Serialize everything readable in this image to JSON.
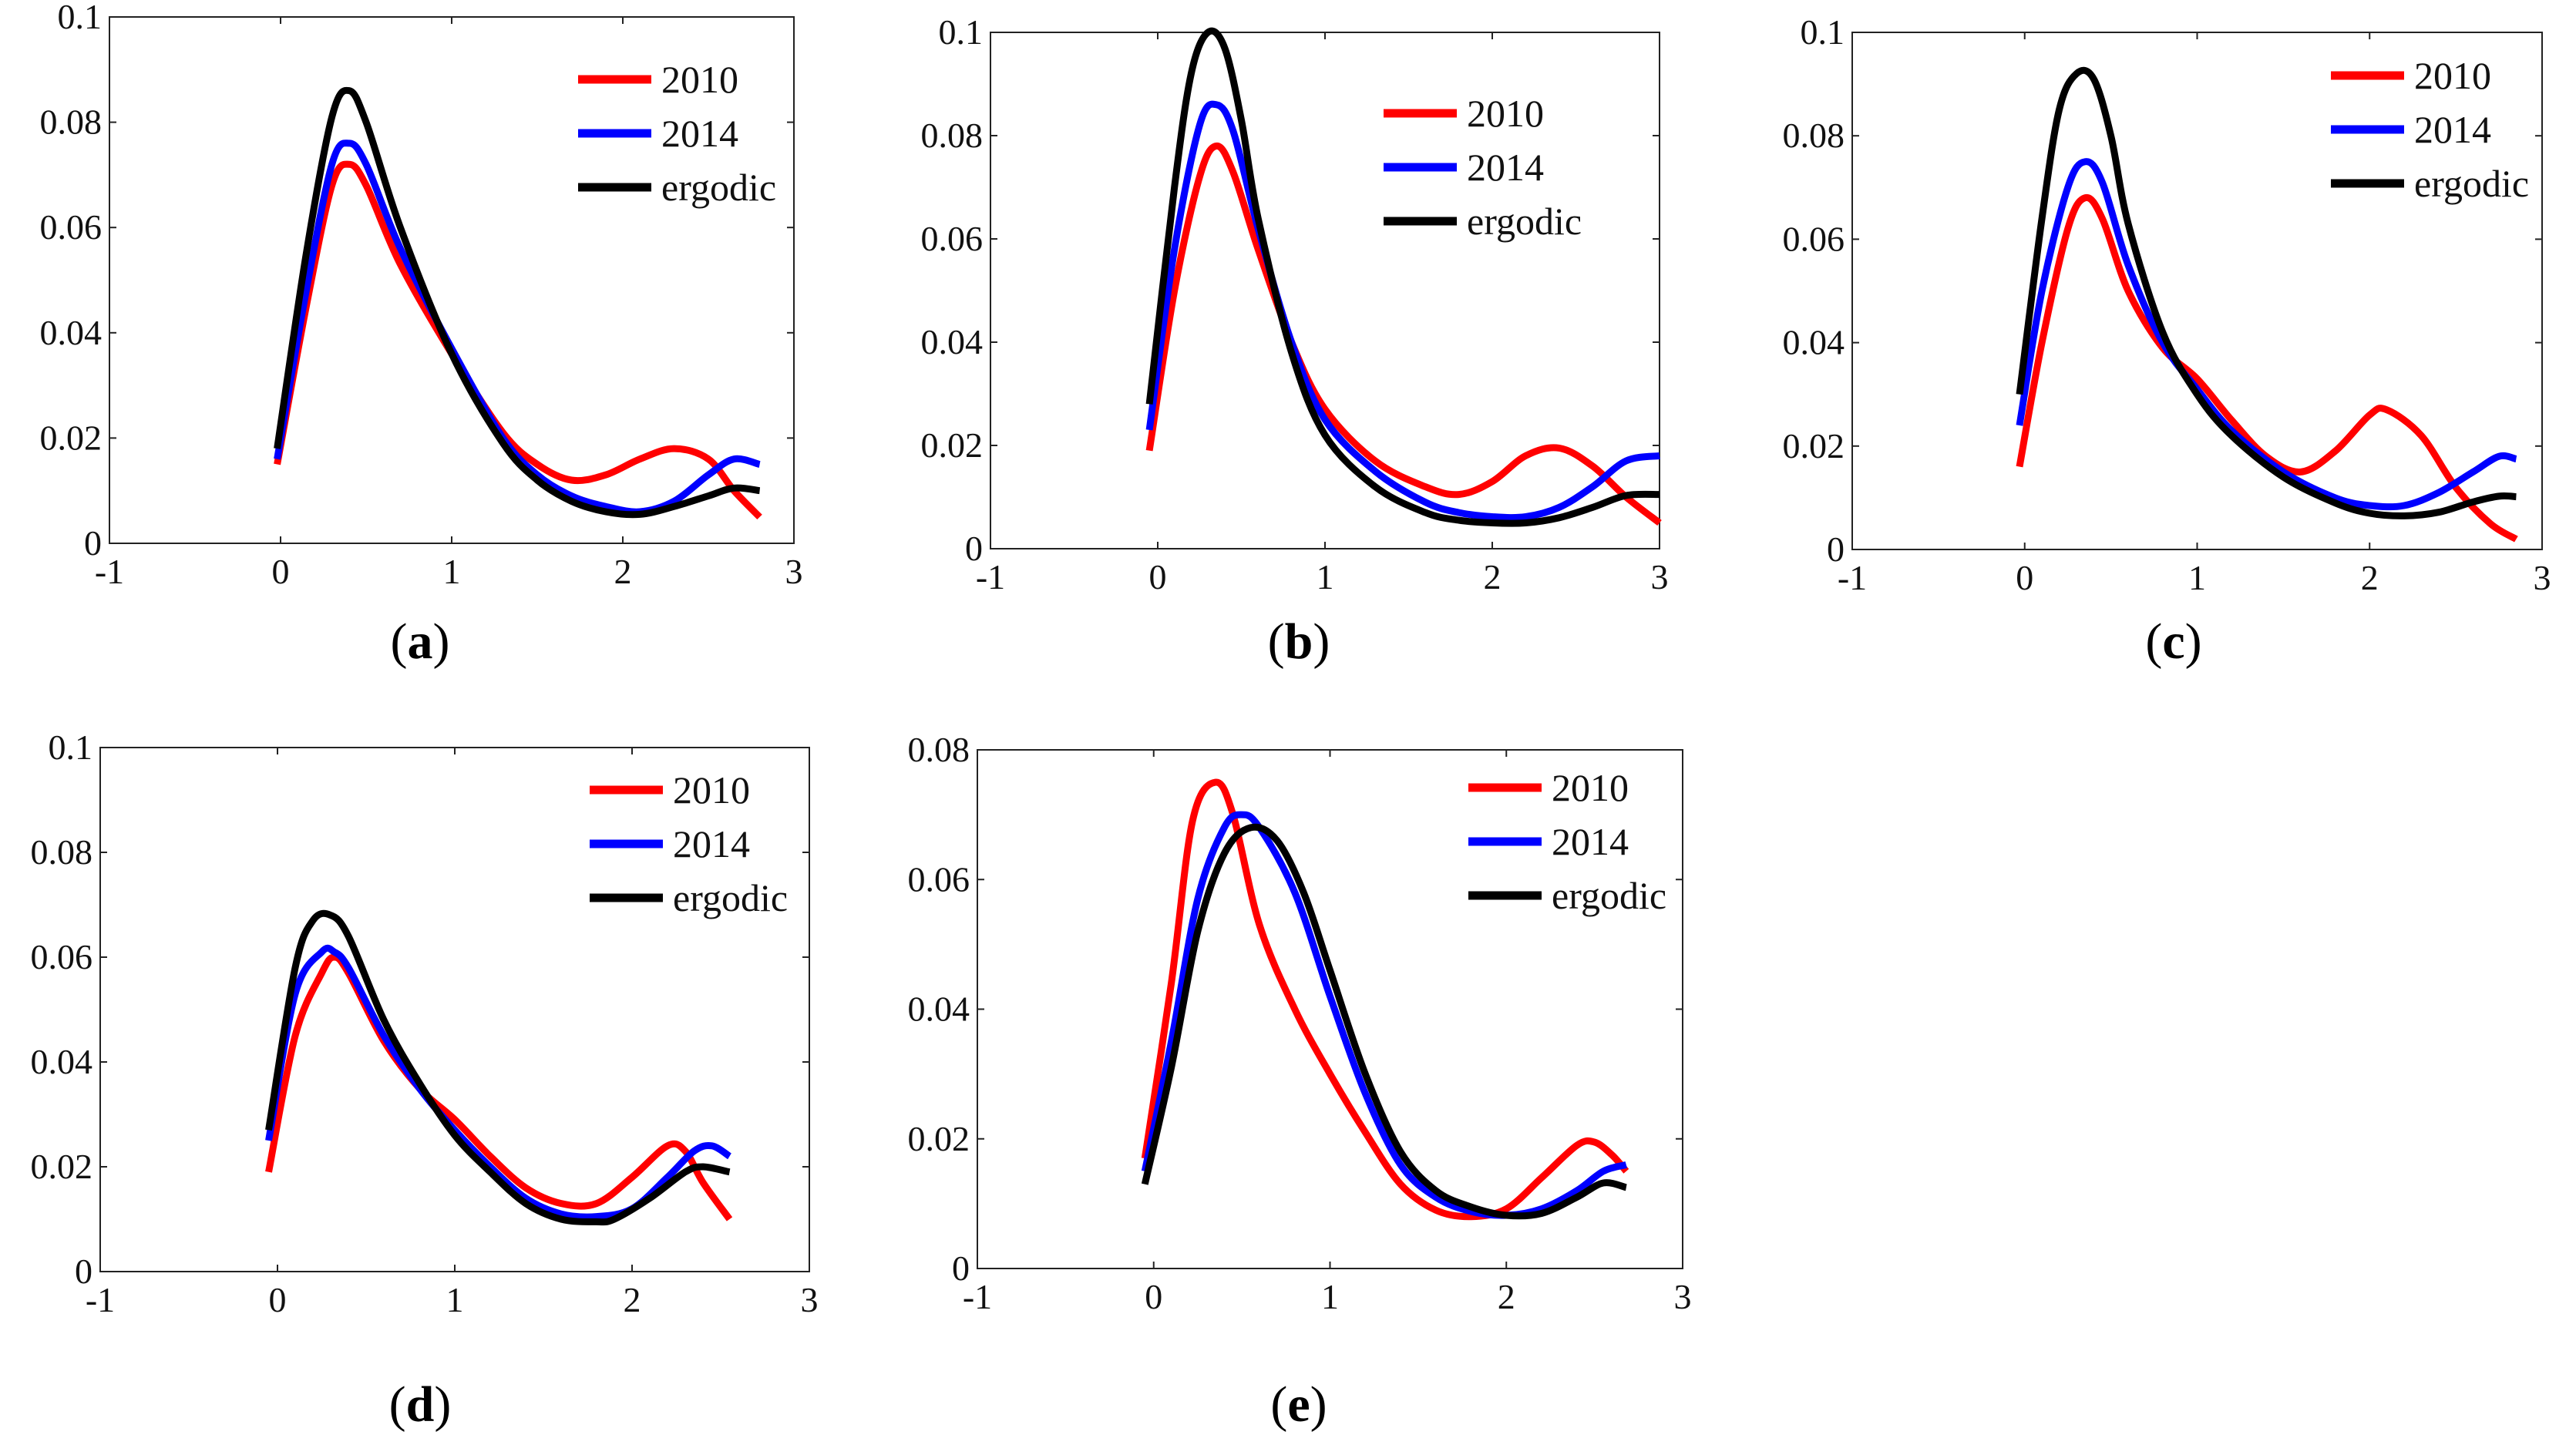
{
  "colors": {
    "2010": "#ff0000",
    "2014": "#0000ff",
    "ergodic": "#000000"
  },
  "chart_data": [
    {
      "type": "line",
      "label": "a",
      "xlim": [
        -1,
        3
      ],
      "ylim": [
        0,
        0.1
      ],
      "xticks": [
        "-1",
        "0",
        "1",
        "2",
        "3"
      ],
      "yticks": [
        "0",
        "0.02",
        "0.04",
        "0.06",
        "0.08",
        "0.1"
      ],
      "ytick_values": [
        0,
        0.02,
        0.04,
        0.06,
        0.08,
        0.1
      ],
      "xtick_values": [
        -1,
        0,
        1,
        2,
        3
      ],
      "legend": [
        "2010",
        "2014",
        "ergodic"
      ],
      "series": [
        {
          "name": "2010",
          "x": [
            -0.02,
            0.15,
            0.3,
            0.4,
            0.5,
            0.7,
            1.0,
            1.3,
            1.5,
            1.7,
            1.9,
            2.1,
            2.3,
            2.5,
            2.65,
            2.8
          ],
          "y": [
            0.015,
            0.045,
            0.068,
            0.072,
            0.068,
            0.053,
            0.036,
            0.021,
            0.015,
            0.012,
            0.013,
            0.016,
            0.018,
            0.016,
            0.01,
            0.005
          ]
        },
        {
          "name": "2014",
          "x": [
            -0.02,
            0.15,
            0.3,
            0.4,
            0.5,
            0.7,
            1.0,
            1.3,
            1.5,
            1.7,
            1.9,
            2.1,
            2.3,
            2.5,
            2.65,
            2.8
          ],
          "y": [
            0.016,
            0.048,
            0.072,
            0.076,
            0.072,
            0.056,
            0.037,
            0.02,
            0.013,
            0.009,
            0.007,
            0.006,
            0.008,
            0.013,
            0.016,
            0.015
          ]
        },
        {
          "name": "ergodic",
          "x": [
            -0.02,
            0.15,
            0.3,
            0.4,
            0.5,
            0.7,
            1.0,
            1.3,
            1.5,
            1.7,
            1.9,
            2.1,
            2.3,
            2.5,
            2.65,
            2.8
          ],
          "y": [
            0.018,
            0.055,
            0.081,
            0.086,
            0.08,
            0.06,
            0.036,
            0.019,
            0.012,
            0.008,
            0.006,
            0.0055,
            0.007,
            0.009,
            0.0105,
            0.01
          ]
        }
      ]
    },
    {
      "type": "line",
      "label": "b",
      "xlim": [
        -1,
        3
      ],
      "ylim": [
        0,
        0.1
      ],
      "xticks": [
        "-1",
        "0",
        "1",
        "2",
        "3"
      ],
      "yticks": [
        "0",
        "0.02",
        "0.04",
        "0.06",
        "0.08",
        "0.1"
      ],
      "ytick_values": [
        0,
        0.02,
        0.04,
        0.06,
        0.08,
        0.1
      ],
      "xtick_values": [
        -1,
        0,
        1,
        2,
        3
      ],
      "legend": [
        "2010",
        "2014",
        "ergodic"
      ],
      "series": [
        {
          "name": "2010",
          "x": [
            -0.05,
            0.1,
            0.25,
            0.35,
            0.45,
            0.6,
            0.8,
            1.0,
            1.3,
            1.6,
            1.8,
            2.0,
            2.2,
            2.4,
            2.6,
            2.8,
            3.0
          ],
          "y": [
            0.019,
            0.05,
            0.072,
            0.078,
            0.073,
            0.058,
            0.04,
            0.027,
            0.017,
            0.012,
            0.0105,
            0.013,
            0.018,
            0.0195,
            0.016,
            0.01,
            0.005
          ]
        },
        {
          "name": "2014",
          "x": [
            -0.05,
            0.1,
            0.25,
            0.35,
            0.45,
            0.6,
            0.8,
            1.0,
            1.3,
            1.6,
            1.8,
            2.0,
            2.2,
            2.4,
            2.6,
            2.8,
            3.0
          ],
          "y": [
            0.023,
            0.058,
            0.082,
            0.086,
            0.081,
            0.062,
            0.04,
            0.025,
            0.015,
            0.009,
            0.007,
            0.0062,
            0.0062,
            0.008,
            0.012,
            0.017,
            0.018
          ]
        },
        {
          "name": "ergodic",
          "x": [
            -0.05,
            0.1,
            0.2,
            0.3,
            0.4,
            0.5,
            0.6,
            0.8,
            1.0,
            1.3,
            1.6,
            1.8,
            2.0,
            2.2,
            2.4,
            2.6,
            2.8,
            3.0
          ],
          "y": [
            0.028,
            0.07,
            0.092,
            0.1,
            0.097,
            0.083,
            0.064,
            0.038,
            0.022,
            0.012,
            0.007,
            0.0055,
            0.005,
            0.005,
            0.006,
            0.008,
            0.0103,
            0.0105
          ]
        }
      ]
    },
    {
      "type": "line",
      "label": "c",
      "xlim": [
        -1,
        3
      ],
      "ylim": [
        0,
        0.1
      ],
      "xticks": [
        "-1",
        "0",
        "1",
        "2",
        "3"
      ],
      "yticks": [
        "0",
        "0.02",
        "0.04",
        "0.06",
        "0.08",
        "0.1"
      ],
      "ytick_values": [
        0,
        0.02,
        0.04,
        0.06,
        0.08,
        0.1
      ],
      "xtick_values": [
        -1,
        0,
        1,
        2,
        3
      ],
      "legend": [
        "2010",
        "2014",
        "ergodic"
      ],
      "series": [
        {
          "name": "2010",
          "x": [
            -0.03,
            0.1,
            0.25,
            0.35,
            0.45,
            0.6,
            0.8,
            1.0,
            1.2,
            1.4,
            1.6,
            1.8,
            2.0,
            2.1,
            2.3,
            2.5,
            2.7,
            2.85
          ],
          "y": [
            0.016,
            0.04,
            0.062,
            0.068,
            0.064,
            0.05,
            0.039,
            0.033,
            0.025,
            0.018,
            0.015,
            0.019,
            0.026,
            0.027,
            0.022,
            0.012,
            0.005,
            0.002
          ]
        },
        {
          "name": "2014",
          "x": [
            -0.03,
            0.1,
            0.25,
            0.35,
            0.45,
            0.6,
            0.8,
            1.0,
            1.2,
            1.5,
            1.8,
            2.0,
            2.2,
            2.4,
            2.6,
            2.75,
            2.85
          ],
          "y": [
            0.024,
            0.05,
            0.07,
            0.075,
            0.071,
            0.055,
            0.04,
            0.031,
            0.023,
            0.015,
            0.01,
            0.0085,
            0.0085,
            0.011,
            0.015,
            0.018,
            0.0175
          ]
        },
        {
          "name": "ergodic",
          "x": [
            -0.03,
            0.1,
            0.2,
            0.3,
            0.4,
            0.5,
            0.6,
            0.8,
            1.0,
            1.2,
            1.5,
            1.8,
            2.0,
            2.2,
            2.4,
            2.6,
            2.75,
            2.85
          ],
          "y": [
            0.03,
            0.064,
            0.085,
            0.092,
            0.091,
            0.08,
            0.063,
            0.042,
            0.03,
            0.022,
            0.014,
            0.009,
            0.007,
            0.0065,
            0.0072,
            0.0092,
            0.0103,
            0.0102
          ]
        }
      ]
    },
    {
      "type": "line",
      "label": "d",
      "xlim": [
        -1,
        3
      ],
      "ylim": [
        0,
        0.1
      ],
      "xticks": [
        "-1",
        "0",
        "1",
        "2",
        "3"
      ],
      "yticks": [
        "0",
        "0.02",
        "0.04",
        "0.06",
        "0.08",
        "0.1"
      ],
      "ytick_values": [
        0,
        0.02,
        0.04,
        0.06,
        0.08,
        0.1
      ],
      "xtick_values": [
        -1,
        0,
        1,
        2,
        3
      ],
      "legend": [
        "2010",
        "2014",
        "ergodic"
      ],
      "series": [
        {
          "name": "2010",
          "x": [
            -0.05,
            0.1,
            0.25,
            0.32,
            0.4,
            0.6,
            0.8,
            1.0,
            1.2,
            1.4,
            1.6,
            1.8,
            2.0,
            2.2,
            2.3,
            2.4,
            2.55
          ],
          "y": [
            0.019,
            0.045,
            0.057,
            0.06,
            0.057,
            0.044,
            0.035,
            0.029,
            0.022,
            0.016,
            0.013,
            0.013,
            0.018,
            0.024,
            0.023,
            0.017,
            0.01
          ]
        },
        {
          "name": "2014",
          "x": [
            -0.05,
            0.1,
            0.25,
            0.32,
            0.4,
            0.6,
            0.8,
            1.0,
            1.2,
            1.4,
            1.6,
            1.8,
            2.0,
            2.2,
            2.35,
            2.45,
            2.55
          ],
          "y": [
            0.025,
            0.053,
            0.061,
            0.061,
            0.058,
            0.045,
            0.035,
            0.027,
            0.02,
            0.014,
            0.011,
            0.0105,
            0.012,
            0.018,
            0.023,
            0.024,
            0.022
          ]
        },
        {
          "name": "ergodic",
          "x": [
            -0.05,
            0.1,
            0.2,
            0.3,
            0.4,
            0.6,
            0.8,
            1.0,
            1.2,
            1.4,
            1.6,
            1.8,
            1.9,
            2.1,
            2.3,
            2.4,
            2.55
          ],
          "y": [
            0.027,
            0.058,
            0.067,
            0.068,
            0.064,
            0.048,
            0.036,
            0.026,
            0.019,
            0.013,
            0.01,
            0.0095,
            0.01,
            0.014,
            0.019,
            0.02,
            0.019
          ]
        }
      ]
    },
    {
      "type": "line",
      "label": "e",
      "xlim": [
        -1,
        3
      ],
      "ylim": [
        0,
        0.08
      ],
      "xticks": [
        "-1",
        "0",
        "1",
        "2",
        "3"
      ],
      "yticks": [
        "0",
        "0.02",
        "0.04",
        "0.06",
        "0.08"
      ],
      "ytick_values": [
        0,
        0.02,
        0.04,
        0.06,
        0.08
      ],
      "xtick_values": [
        -1,
        0,
        1,
        2,
        3
      ],
      "legend": [
        "2010",
        "2014",
        "ergodic"
      ],
      "series": [
        {
          "name": "2010",
          "x": [
            -0.05,
            0.1,
            0.22,
            0.35,
            0.45,
            0.6,
            0.8,
            1.0,
            1.2,
            1.4,
            1.6,
            1.8,
            2.0,
            2.2,
            2.4,
            2.5,
            2.6,
            2.68
          ],
          "y": [
            0.017,
            0.044,
            0.069,
            0.075,
            0.07,
            0.053,
            0.04,
            0.03,
            0.021,
            0.013,
            0.009,
            0.008,
            0.0092,
            0.014,
            0.019,
            0.0195,
            0.0175,
            0.015
          ]
        },
        {
          "name": "2014",
          "x": [
            -0.05,
            0.1,
            0.25,
            0.4,
            0.5,
            0.6,
            0.8,
            1.0,
            1.2,
            1.4,
            1.6,
            1.8,
            2.0,
            2.2,
            2.4,
            2.55,
            2.68
          ],
          "y": [
            0.015,
            0.035,
            0.057,
            0.068,
            0.07,
            0.068,
            0.058,
            0.042,
            0.027,
            0.016,
            0.011,
            0.0088,
            0.0082,
            0.0092,
            0.012,
            0.015,
            0.016
          ]
        },
        {
          "name": "ergodic",
          "x": [
            -0.05,
            0.1,
            0.25,
            0.4,
            0.55,
            0.7,
            0.85,
            1.0,
            1.2,
            1.4,
            1.6,
            1.8,
            2.0,
            2.2,
            2.4,
            2.55,
            2.68
          ],
          "y": [
            0.013,
            0.031,
            0.052,
            0.064,
            0.068,
            0.066,
            0.058,
            0.046,
            0.03,
            0.018,
            0.012,
            0.0095,
            0.0082,
            0.0085,
            0.011,
            0.0132,
            0.0125
          ]
        }
      ]
    }
  ],
  "captions": [
    "a",
    "b",
    "c",
    "d",
    "e"
  ]
}
